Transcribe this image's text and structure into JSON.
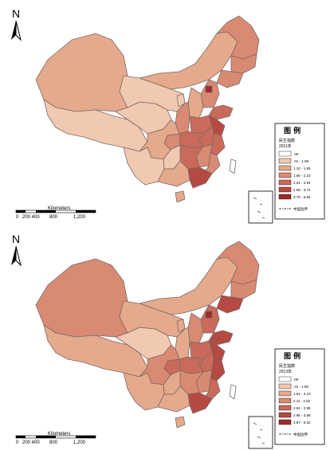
{
  "colors": {
    "class0": "#ffffff",
    "class1": "#f1c8b0",
    "class2": "#e5a98c",
    "class3": "#d98a72",
    "class4": "#c96a5a",
    "class5": "#b54a42",
    "class6": "#9e2a2a",
    "border": "#7a6a66",
    "ink": "#000000"
  },
  "north_label": "N",
  "scale": {
    "unit": "Kilometers",
    "ticks": [
      "0",
      "200 400",
      "800",
      "1,200"
    ]
  },
  "maps": [
    {
      "legend": {
        "title": "图 例",
        "field": "民生指数",
        "year": "2011年",
        "classes": [
          ".00",
          ".01 - 1.09",
          "1.10 - 1.65",
          "1.66 - 2.23",
          "2.24 - 2.94",
          "2.95 - 3.74",
          "3.75 - 6.84"
        ],
        "boundary_label": "中国边界"
      },
      "region_classes": {
        "xinjiang": 2,
        "xizang": 1,
        "qinghai": 1,
        "gansu": 1,
        "neimenggu": 2,
        "heilongjiang": 3,
        "jilin": 3,
        "liaoning": 3,
        "hebei": 3,
        "shandong": 4,
        "shanxi": 2,
        "shaanxi": 3,
        "ningxia": 1,
        "sichuan": 2,
        "chongqing": 3,
        "yunnan": 1,
        "guizhou": 1,
        "guangxi": 2,
        "hubei": 4,
        "hunan": 4,
        "henan": 4,
        "anhui": 4,
        "jiangsu": 5,
        "zhejiang": 4,
        "jiangxi": 3,
        "fujian": 3,
        "guangdong": 5,
        "hainan": 2,
        "beijing": 6,
        "taiwan": 0
      }
    },
    {
      "legend": {
        "title": "图 例",
        "field": "民生指数",
        "year": "2013年",
        "classes": [
          ".00",
          ".01 - 1.60",
          "1.61 - 2.10",
          "2.11 - 2.50",
          "2.51 - 2.95",
          "2.96 - 3.86",
          "3.87 - 5.52"
        ],
        "boundary_label": "中国边界"
      },
      "region_classes": {
        "xinjiang": 3,
        "xizang": 2,
        "qinghai": 1,
        "gansu": 2,
        "neimenggu": 2,
        "heilongjiang": 3,
        "jilin": 3,
        "liaoning": 5,
        "hebei": 4,
        "shandong": 5,
        "shanxi": 3,
        "shaanxi": 2,
        "ningxia": 2,
        "sichuan": 3,
        "chongqing": 4,
        "yunnan": 2,
        "guizhou": 2,
        "guangxi": 2,
        "hubei": 4,
        "hunan": 3,
        "henan": 4,
        "anhui": 4,
        "jiangsu": 5,
        "zhejiang": 5,
        "jiangxi": 3,
        "fujian": 4,
        "guangdong": 5,
        "hainan": 2,
        "beijing": 6,
        "taiwan": 0
      }
    }
  ]
}
